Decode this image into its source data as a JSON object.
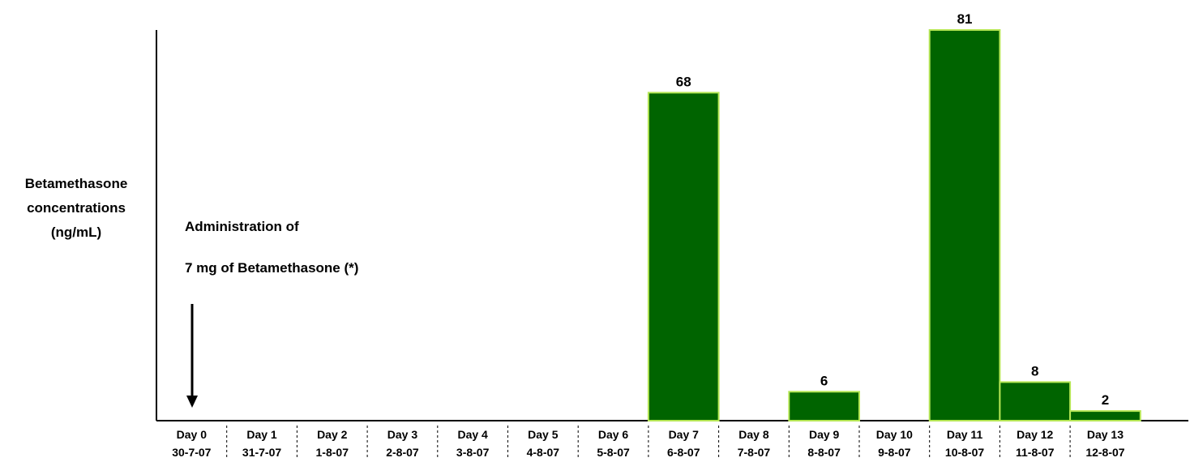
{
  "chart_data": {
    "type": "bar",
    "title": "",
    "ylabel_lines": [
      "Betamethasone",
      "concentrations",
      "(ng/mL)"
    ],
    "categories": [
      "Day 0",
      "Day 1",
      "Day 2",
      "Day 3",
      "Day 4",
      "Day 5",
      "Day 6",
      "Day 7",
      "Day 8",
      "Day 9",
      "Day 10",
      "Day 11",
      "Day 12",
      "Day 13"
    ],
    "dates": [
      "30-7-07",
      "31-7-07",
      "1-8-07",
      "2-8-07",
      "3-8-07",
      "4-8-07",
      "5-8-07",
      "6-8-07",
      "7-8-07",
      "8-8-07",
      "9-8-07",
      "10-8-07",
      "11-8-07",
      "12-8-07"
    ],
    "values": [
      null,
      null,
      null,
      null,
      null,
      null,
      null,
      68,
      null,
      6,
      null,
      81,
      8,
      2
    ],
    "value_labels": [
      "",
      "",
      "",
      "",
      "",
      "",
      "",
      "68",
      "",
      "6",
      "",
      "81",
      "8",
      "2"
    ],
    "ylim": [
      0,
      81
    ],
    "grid": false,
    "bar_color": "#006400",
    "bar_border_color": "#b5e655"
  },
  "annotation": {
    "line1": "Administration of",
    "line2": "7 mg of Betamethasone (*)"
  }
}
